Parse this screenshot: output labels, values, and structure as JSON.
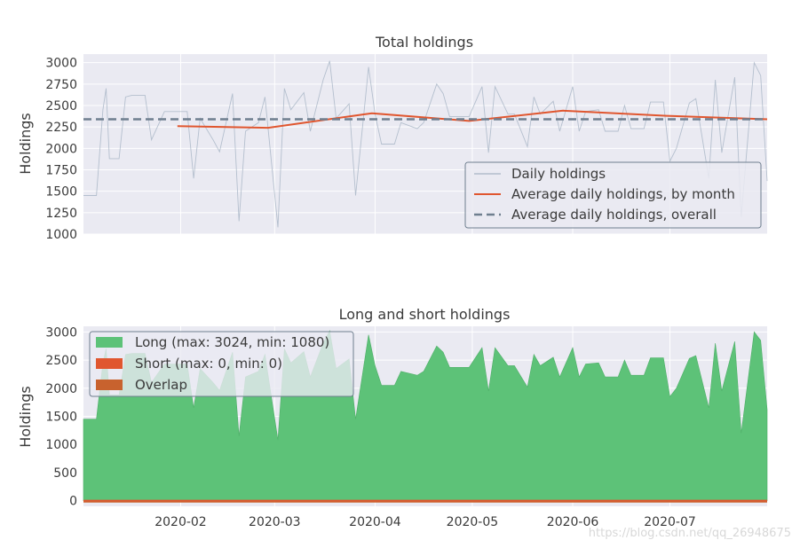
{
  "watermark": "https://blog.csdn.net/qq_26948675",
  "chart_data": [
    {
      "type": "line",
      "title": "Total holdings",
      "xlabel": "",
      "ylabel": "Holdings",
      "xlim": [
        "2020-01-02",
        "2020-07-31"
      ],
      "ylim": [
        1000,
        3100
      ],
      "yticks": [
        1000,
        1250,
        1500,
        1750,
        2000,
        2250,
        2500,
        2750,
        3000
      ],
      "grid": true,
      "legend_position": "lower right",
      "series": [
        {
          "name": "Daily holdings",
          "color": "#a6b4c4",
          "x": [
            "2020-01-02",
            "2020-01-06",
            "2020-01-08",
            "2020-01-09",
            "2020-01-10",
            "2020-01-13",
            "2020-01-15",
            "2020-01-17",
            "2020-01-21",
            "2020-01-23",
            "2020-01-27",
            "2020-01-29",
            "2020-01-31",
            "2020-02-03",
            "2020-02-05",
            "2020-02-07",
            "2020-02-11",
            "2020-02-13",
            "2020-02-17",
            "2020-02-19",
            "2020-02-21",
            "2020-02-25",
            "2020-02-27",
            "2020-03-02",
            "2020-03-04",
            "2020-03-06",
            "2020-03-10",
            "2020-03-12",
            "2020-03-16",
            "2020-03-18",
            "2020-03-20",
            "2020-03-24",
            "2020-03-26",
            "2020-03-30",
            "2020-04-01",
            "2020-04-03",
            "2020-04-07",
            "2020-04-09",
            "2020-04-14",
            "2020-04-16",
            "2020-04-20",
            "2020-04-22",
            "2020-04-24",
            "2020-04-28",
            "2020-04-30",
            "2020-05-04",
            "2020-05-06",
            "2020-05-08",
            "2020-05-12",
            "2020-05-14",
            "2020-05-18",
            "2020-05-20",
            "2020-05-22",
            "2020-05-26",
            "2020-05-28",
            "2020-06-01",
            "2020-06-03",
            "2020-06-05",
            "2020-06-09",
            "2020-06-11",
            "2020-06-15",
            "2020-06-17",
            "2020-06-19",
            "2020-06-23",
            "2020-06-25",
            "2020-06-29",
            "2020-07-01",
            "2020-07-03",
            "2020-07-07",
            "2020-07-09",
            "2020-07-13",
            "2020-07-15",
            "2020-07-17",
            "2020-07-21",
            "2020-07-23",
            "2020-07-27",
            "2020-07-29",
            "2020-07-31"
          ],
          "values": [
            1450,
            1450,
            2450,
            2700,
            1880,
            1880,
            2600,
            2620,
            2620,
            2100,
            2430,
            2430,
            2430,
            2430,
            1650,
            2350,
            2100,
            1960,
            2640,
            1150,
            2200,
            2300,
            2600,
            1080,
            2700,
            2450,
            2650,
            2200,
            2800,
            3020,
            2350,
            2520,
            1450,
            2950,
            2400,
            2050,
            2050,
            2300,
            2230,
            2300,
            2750,
            2640,
            2370,
            2370,
            2370,
            2720,
            1950,
            2720,
            2400,
            2400,
            2020,
            2600,
            2400,
            2550,
            2200,
            2720,
            2200,
            2430,
            2450,
            2200,
            2200,
            2500,
            2230,
            2230,
            2540,
            2540,
            1850,
            2000,
            2530,
            2580,
            1650,
            2800,
            1950,
            2830,
            1200,
            3000,
            2850,
            1620
          ]
        },
        {
          "name": "Average daily holdings, by month",
          "color": "#e0562f",
          "x": [
            "2020-01-31",
            "2020-02-28",
            "2020-03-31",
            "2020-04-30",
            "2020-05-29",
            "2020-06-30",
            "2020-07-31"
          ],
          "values": [
            2260,
            2240,
            2410,
            2320,
            2440,
            2380,
            2340
          ]
        },
        {
          "name": "Average daily holdings, overall",
          "color": "#6f7f8f",
          "x": [
            "2020-01-02",
            "2020-07-31"
          ],
          "values": [
            2340,
            2340
          ]
        }
      ]
    },
    {
      "type": "area",
      "title": "Long and short holdings",
      "xlabel": "",
      "ylabel": "Holdings",
      "xlim": [
        "2020-01-02",
        "2020-07-31"
      ],
      "ylim": [
        -100,
        3100
      ],
      "yticks": [
        0,
        500,
        1000,
        1500,
        2000,
        2500,
        3000
      ],
      "xticks": [
        "2020-02",
        "2020-03",
        "2020-04",
        "2020-05",
        "2020-06",
        "2020-07"
      ],
      "grid": true,
      "legend_position": "upper left",
      "series": [
        {
          "name": "Long (max: 3024, min: 1080)",
          "color": "#5dc278",
          "x": [
            "2020-01-02",
            "2020-01-06",
            "2020-01-08",
            "2020-01-09",
            "2020-01-10",
            "2020-01-13",
            "2020-01-15",
            "2020-01-17",
            "2020-01-21",
            "2020-01-23",
            "2020-01-27",
            "2020-01-29",
            "2020-01-31",
            "2020-02-03",
            "2020-02-05",
            "2020-02-07",
            "2020-02-11",
            "2020-02-13",
            "2020-02-17",
            "2020-02-19",
            "2020-02-21",
            "2020-02-25",
            "2020-02-27",
            "2020-03-02",
            "2020-03-04",
            "2020-03-06",
            "2020-03-10",
            "2020-03-12",
            "2020-03-16",
            "2020-03-18",
            "2020-03-20",
            "2020-03-24",
            "2020-03-26",
            "2020-03-30",
            "2020-04-01",
            "2020-04-03",
            "2020-04-07",
            "2020-04-09",
            "2020-04-14",
            "2020-04-16",
            "2020-04-20",
            "2020-04-22",
            "2020-04-24",
            "2020-04-28",
            "2020-04-30",
            "2020-05-04",
            "2020-05-06",
            "2020-05-08",
            "2020-05-12",
            "2020-05-14",
            "2020-05-18",
            "2020-05-20",
            "2020-05-22",
            "2020-05-26",
            "2020-05-28",
            "2020-06-01",
            "2020-06-03",
            "2020-06-05",
            "2020-06-09",
            "2020-06-11",
            "2020-06-15",
            "2020-06-17",
            "2020-06-19",
            "2020-06-23",
            "2020-06-25",
            "2020-06-29",
            "2020-07-01",
            "2020-07-03",
            "2020-07-07",
            "2020-07-09",
            "2020-07-13",
            "2020-07-15",
            "2020-07-17",
            "2020-07-21",
            "2020-07-23",
            "2020-07-27",
            "2020-07-29",
            "2020-07-31"
          ],
          "values": [
            1450,
            1450,
            2450,
            2700,
            1880,
            1880,
            2600,
            2620,
            2620,
            2100,
            2430,
            2430,
            2430,
            2430,
            1650,
            2350,
            2100,
            1960,
            2640,
            1150,
            2200,
            2300,
            2600,
            1080,
            2700,
            2450,
            2650,
            2200,
            2800,
            3020,
            2350,
            2520,
            1450,
            2950,
            2400,
            2050,
            2050,
            2300,
            2230,
            2300,
            2750,
            2640,
            2370,
            2370,
            2370,
            2720,
            1950,
            2720,
            2400,
            2400,
            2020,
            2600,
            2400,
            2550,
            2200,
            2720,
            2200,
            2430,
            2450,
            2200,
            2200,
            2500,
            2230,
            2230,
            2540,
            2540,
            1850,
            2000,
            2530,
            2580,
            1650,
            2800,
            1950,
            2830,
            1200,
            3000,
            2850,
            1620
          ]
        },
        {
          "name": "Short (max: 0, min: 0)",
          "color": "#e0562f",
          "x": [
            "2020-01-02",
            "2020-07-31"
          ],
          "values": [
            0,
            0
          ]
        },
        {
          "name": "Overlap",
          "color": "#c8622e",
          "x": [
            "2020-01-02",
            "2020-07-31"
          ],
          "values": [
            0,
            0
          ]
        }
      ]
    }
  ]
}
